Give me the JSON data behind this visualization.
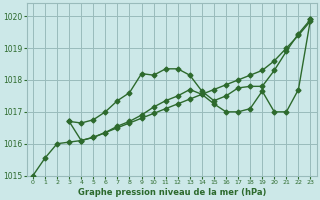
{
  "bg_color": "#cce8e8",
  "grid_color": "#99bbbb",
  "line_color": "#2d6a2d",
  "xlabel": "Graphe pression niveau de la mer (hPa)",
  "ylim": [
    1015,
    1020.4
  ],
  "xlim": [
    -0.5,
    23.5
  ],
  "yticks": [
    1015,
    1016,
    1017,
    1018,
    1019,
    1020
  ],
  "xticks": [
    0,
    1,
    2,
    3,
    4,
    5,
    6,
    7,
    8,
    9,
    10,
    11,
    12,
    13,
    14,
    15,
    16,
    17,
    18,
    19,
    20,
    21,
    22,
    23
  ],
  "line1_x": [
    0,
    1,
    2,
    3,
    4,
    5,
    6,
    7,
    8,
    9,
    10,
    11,
    12,
    13,
    14,
    15,
    16,
    17,
    18,
    19,
    20,
    21,
    22,
    23
  ],
  "line1_y": [
    1015.0,
    1015.55,
    1016.0,
    1016.05,
    1016.1,
    1016.2,
    1016.35,
    1016.5,
    1016.65,
    1016.8,
    1016.95,
    1017.1,
    1017.25,
    1017.4,
    1017.55,
    1017.7,
    1017.85,
    1018.0,
    1018.15,
    1018.3,
    1018.6,
    1019.0,
    1019.4,
    1019.85
  ],
  "line2_x": [
    3,
    4,
    5,
    6,
    7,
    8,
    9,
    10,
    11,
    12,
    13,
    14,
    15,
    16,
    17,
    18,
    19,
    20,
    21,
    22,
    23
  ],
  "line2_y": [
    1016.7,
    1016.65,
    1016.75,
    1017.0,
    1017.35,
    1017.6,
    1018.2,
    1018.15,
    1018.35,
    1018.35,
    1018.15,
    1017.65,
    1017.35,
    1017.5,
    1017.75,
    1017.8,
    1017.8,
    1018.3,
    1018.9,
    1019.45,
    1019.9
  ],
  "line3_x": [
    3,
    4,
    5,
    6,
    7,
    8,
    9,
    10,
    11,
    12,
    13,
    14,
    15,
    16,
    17,
    18,
    19,
    20,
    21,
    22,
    23
  ],
  "line3_y": [
    1016.7,
    1016.1,
    1016.2,
    1016.35,
    1016.55,
    1016.7,
    1016.9,
    1017.15,
    1017.35,
    1017.5,
    1017.7,
    1017.55,
    1017.25,
    1017.0,
    1017.0,
    1017.1,
    1017.65,
    1017.0,
    1017.0,
    1017.7,
    1019.9
  ],
  "marker": "D",
  "markersize": 2.5,
  "linewidth": 1.0
}
